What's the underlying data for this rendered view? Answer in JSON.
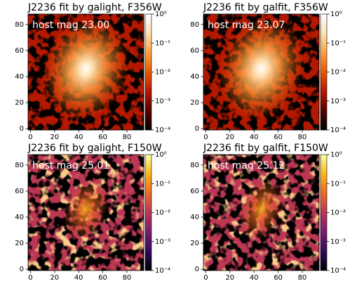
{
  "chart_data": [
    {
      "type": "image",
      "title": "J2236 fit by galight, F356W",
      "annotation": "host mag 23.00",
      "xlim": [
        -2,
        94
      ],
      "xticks": [
        0,
        20,
        40,
        60,
        80
      ],
      "ylim": [
        -1,
        88
      ],
      "yticks": [
        0,
        20,
        40,
        60,
        80
      ],
      "colorbar": {
        "scale": "log",
        "lim": [
          0.0001,
          1
        ],
        "ticks": [
          {
            "value": 1,
            "label": "10⁰"
          },
          {
            "value": 0.1,
            "label": "10⁻¹"
          },
          {
            "value": 0.01,
            "label": "10⁻²"
          },
          {
            "value": 0.001,
            "label": "10⁻³"
          },
          {
            "value": 0.0001,
            "label": "10⁻⁴"
          }
        ]
      },
      "colormap": [
        "#000000",
        "#5a0000",
        "#b41800",
        "#e65a00",
        "#ffa040",
        "#ffe0b0",
        "#ffffff"
      ]
    },
    {
      "type": "image",
      "title": "J2236 fit by galfit, F356W",
      "annotation": "host mag 23.07",
      "xlim": [
        -2,
        94
      ],
      "xticks": [
        0,
        20,
        40,
        60,
        80
      ],
      "ylim": [
        -1,
        88
      ],
      "yticks": [
        0,
        20,
        40,
        60,
        80
      ],
      "colorbar": {
        "scale": "log",
        "lim": [
          0.0001,
          1
        ],
        "ticks": [
          {
            "value": 1,
            "label": "10⁰"
          },
          {
            "value": 0.1,
            "label": "10⁻¹"
          },
          {
            "value": 0.01,
            "label": "10⁻²"
          },
          {
            "value": 0.001,
            "label": "10⁻³"
          },
          {
            "value": 0.0001,
            "label": "10⁻⁴"
          }
        ]
      },
      "colormap": [
        "#000000",
        "#5a0000",
        "#b41800",
        "#e65a00",
        "#ffa040",
        "#ffe0b0",
        "#ffffff"
      ]
    },
    {
      "type": "image",
      "title": "J2236 fit by galight, F150W",
      "annotation": "host mag 25.01",
      "xlim": [
        -2,
        94
      ],
      "xticks": [
        0,
        20,
        40,
        60,
        80
      ],
      "ylim": [
        -1,
        88
      ],
      "yticks": [
        0,
        20,
        40,
        60,
        80
      ],
      "colorbar": {
        "scale": "log",
        "lim": [
          0.0001,
          1
        ],
        "ticks": [
          {
            "value": 1,
            "label": "10⁰"
          },
          {
            "value": 0.1,
            "label": "10⁻¹"
          },
          {
            "value": 0.01,
            "label": "10⁻²"
          },
          {
            "value": 0.001,
            "label": "10⁻³"
          },
          {
            "value": 0.0001,
            "label": "10⁻⁴"
          }
        ]
      },
      "colormap": [
        "#000004",
        "#320a5e",
        "#781c6d",
        "#bc3754",
        "#ed6925",
        "#fbb61a",
        "#fcffa4"
      ]
    },
    {
      "type": "image",
      "title": "J2236 fit by galfit, F150W",
      "annotation": "host mag 25.12",
      "xlim": [
        -2,
        94
      ],
      "xticks": [
        0,
        20,
        40,
        60,
        80
      ],
      "ylim": [
        -1,
        88
      ],
      "yticks": [
        0,
        20,
        40,
        60,
        80
      ],
      "colorbar": {
        "scale": "log",
        "lim": [
          0.0001,
          1
        ],
        "ticks": [
          {
            "value": 1,
            "label": "10⁰"
          },
          {
            "value": 0.1,
            "label": "10⁻¹"
          },
          {
            "value": 0.01,
            "label": "10⁻²"
          },
          {
            "value": 0.001,
            "label": "10⁻³"
          },
          {
            "value": 0.0001,
            "label": "10⁻⁴"
          }
        ]
      },
      "colormap": [
        "#000004",
        "#320a5e",
        "#781c6d",
        "#bc3754",
        "#ed6925",
        "#fbb61a",
        "#fcffa4"
      ]
    }
  ]
}
